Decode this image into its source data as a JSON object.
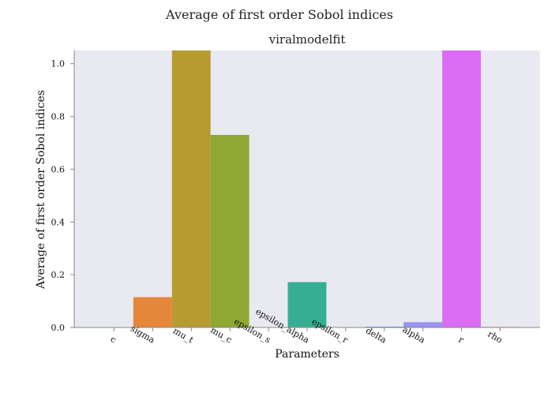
{
  "figure": {
    "suptitle": "Average of first order Sobol indices"
  },
  "chart_data": {
    "type": "bar",
    "title": "viralmodelfit",
    "xlabel": "Parameters",
    "ylabel": "Average of first order Sobol indices",
    "categories": [
      "c",
      "sigma",
      "mu_t",
      "mu_c",
      "epsilon_s",
      "epsilon_alpha",
      "epsilon_r",
      "delta",
      "alpha",
      "r",
      "rho"
    ],
    "values": [
      0.0,
      0.115,
      1.05,
      0.73,
      0.0,
      0.172,
      0.0,
      0.003,
      0.02,
      1.05,
      0.002
    ],
    "colors": [
      "#f77189",
      "#e5873a",
      "#b69b31",
      "#8ea833",
      "#33b04f",
      "#36ae94",
      "#38aabc",
      "#3ba3ec",
      "#9a93f0",
      "#db6cf4",
      "#f466bf"
    ],
    "ylim": [
      0,
      1.05
    ],
    "yticks": [
      0.0,
      0.2,
      0.4,
      0.6,
      0.8,
      1.0
    ],
    "ytick_labels": [
      "0.0",
      "0.2",
      "0.4",
      "0.6",
      "0.8",
      "1.0"
    ],
    "plot_background": "#e9e9f1",
    "grid": false
  }
}
